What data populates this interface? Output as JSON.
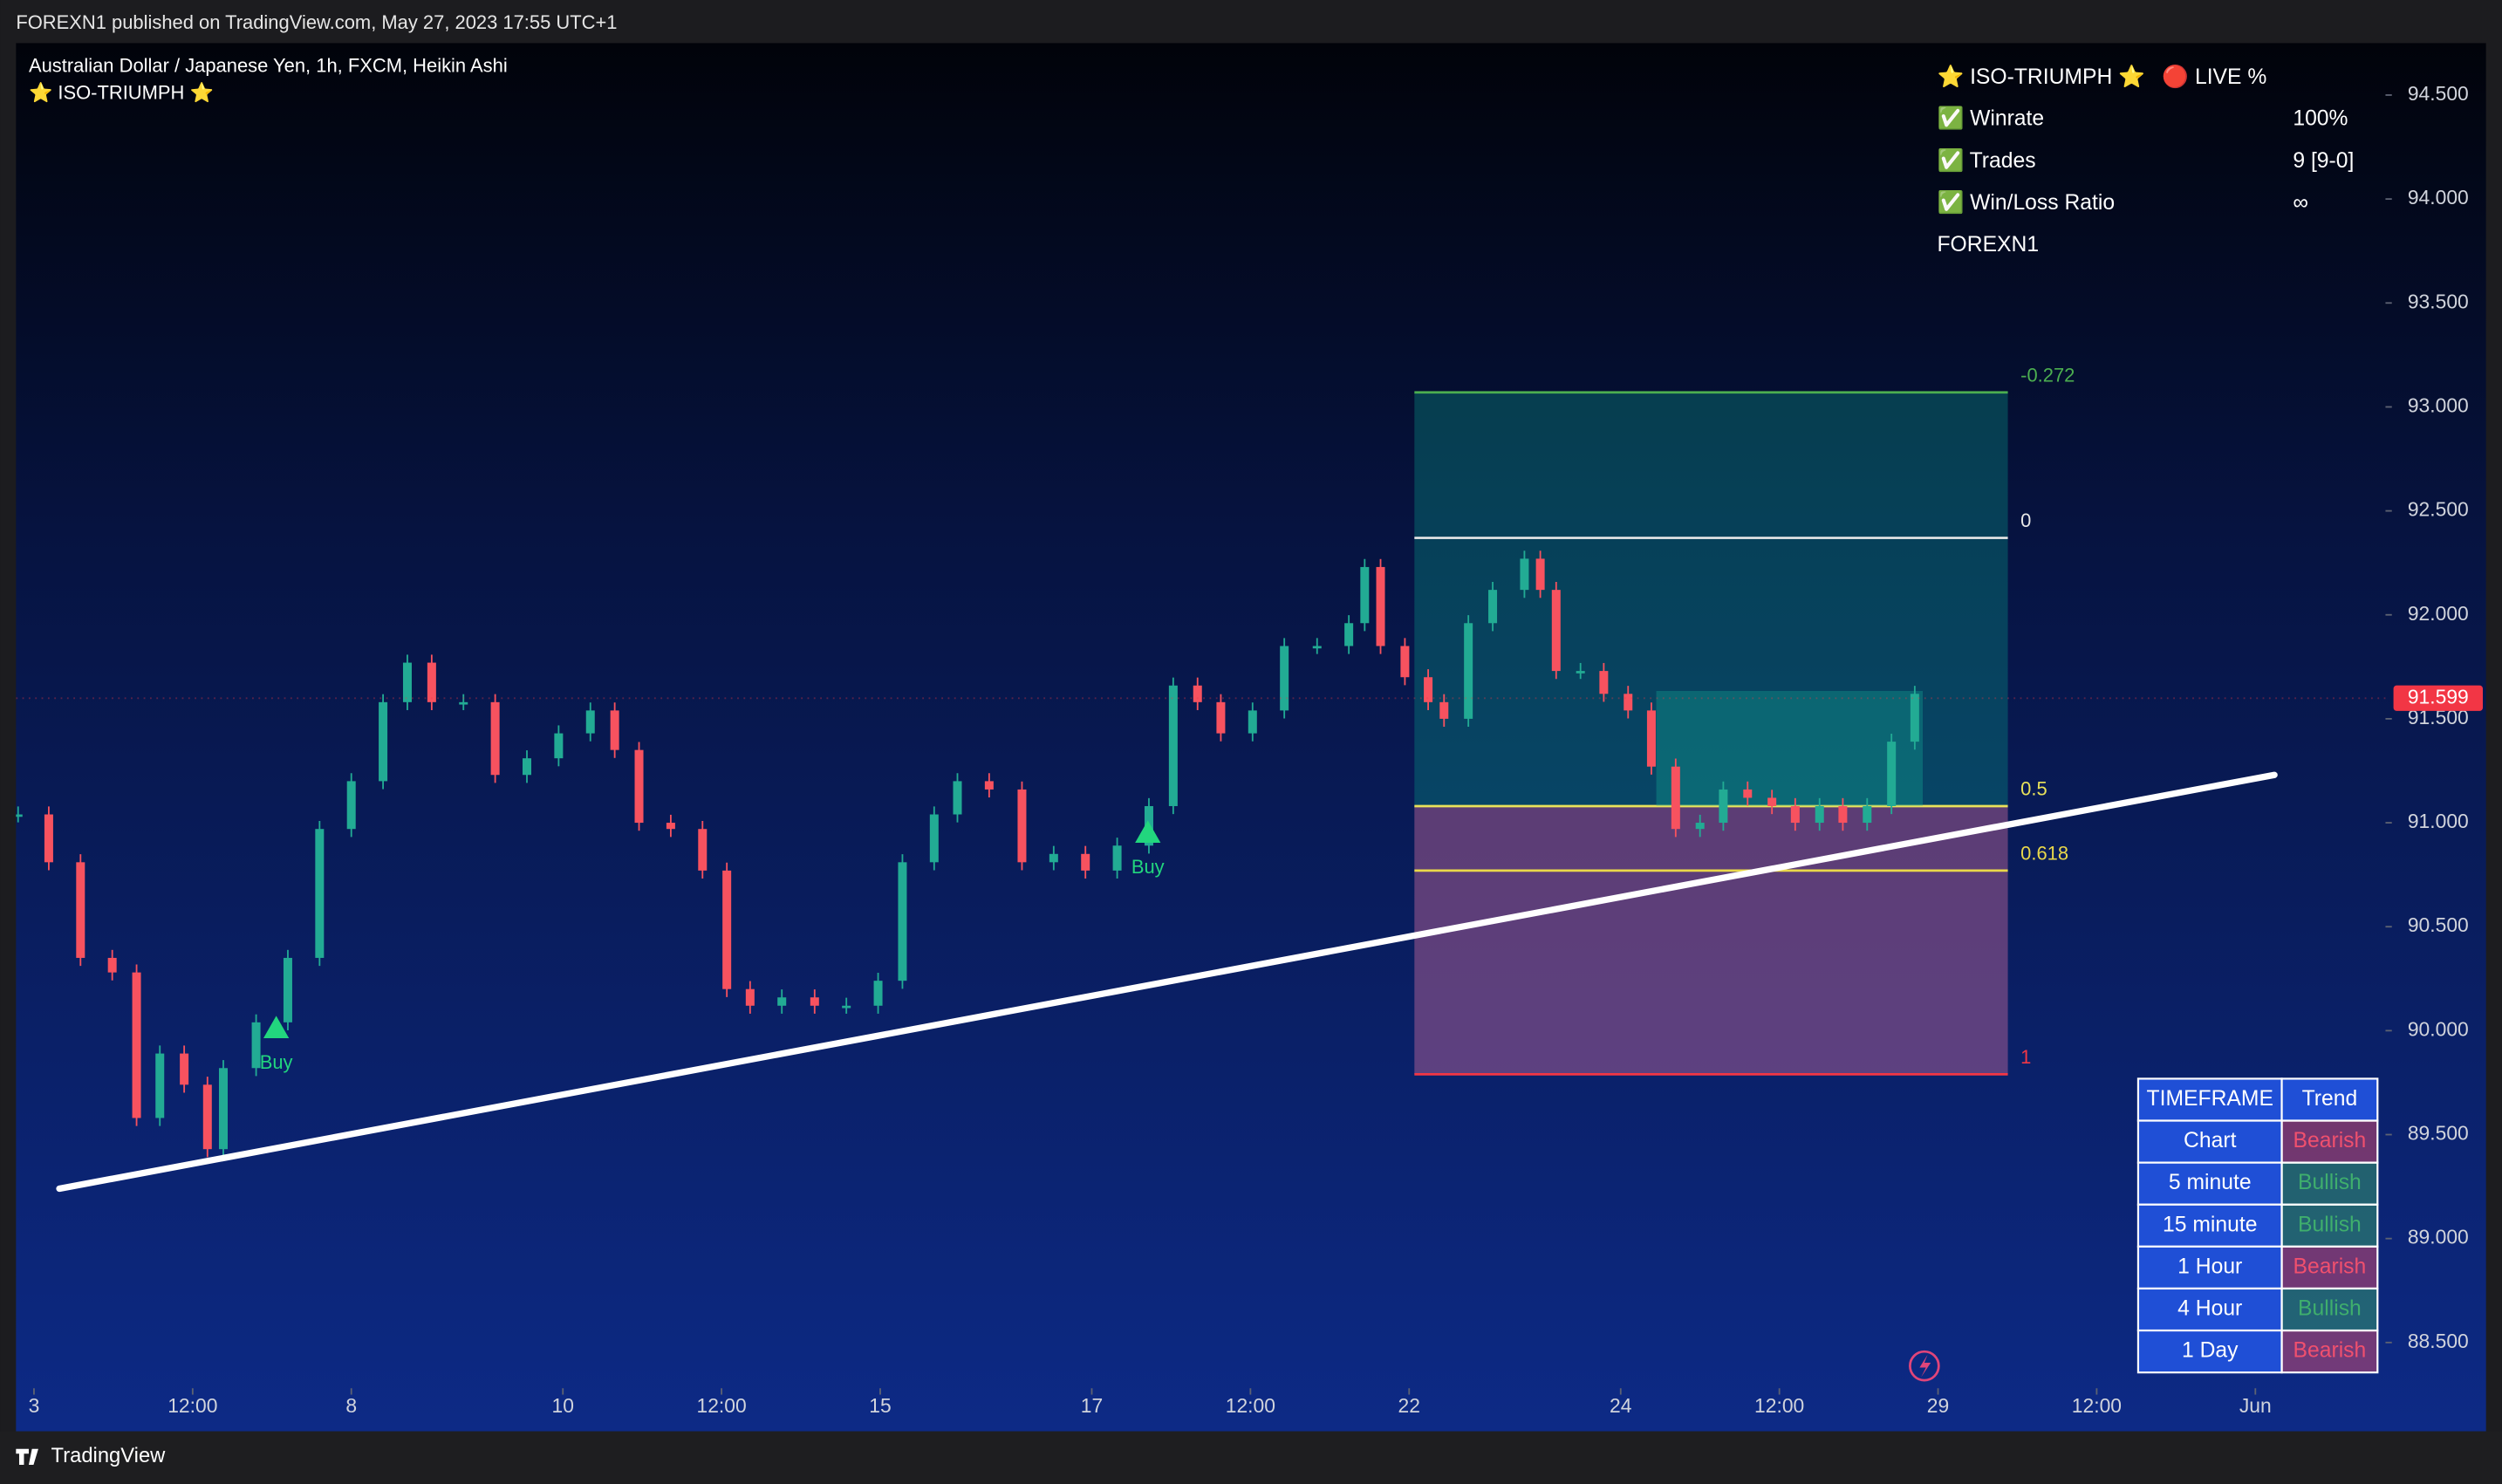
{
  "header": {
    "publisher": "FOREXN1 published on TradingView.com, May 27, 2023 17:55 UTC+1"
  },
  "footer": {
    "brand": "TradingView"
  },
  "legend": {
    "symbol": "Australian Dollar / Japanese Yen, 1h, FXCM, Heikin Ashi",
    "indicator": "⭐ ISO-TRIUMPH ⭐"
  },
  "stats_panel": {
    "title": "⭐ ISO-TRIUMPH ⭐",
    "live": "🔴 LIVE %",
    "rows": [
      [
        "✅ Winrate",
        "100%"
      ],
      [
        "✅ Trades",
        "9 [9-0]"
      ],
      [
        "✅ Win/Loss Ratio",
        "∞"
      ]
    ],
    "author": "FOREXN1"
  },
  "trend_table": {
    "header": [
      "TIMEFRAME",
      "Trend"
    ],
    "rows": [
      {
        "timeframe": "Chart",
        "trend": "Bearish",
        "color": "#f0506e"
      },
      {
        "timeframe": "5 minute",
        "trend": "Bullish",
        "color": "#3fae6d"
      },
      {
        "timeframe": "15 minute",
        "trend": "Bullish",
        "color": "#3fae6d"
      },
      {
        "timeframe": "1 Hour",
        "trend": "Bearish",
        "color": "#f0506e"
      },
      {
        "timeframe": "4 Hour",
        "trend": "Bullish",
        "color": "#3fae6d"
      },
      {
        "timeframe": "1 Day",
        "trend": "Bearish",
        "color": "#f0506e"
      }
    ]
  },
  "chart_data": {
    "type": "candlestick",
    "xlim": [
      -0.17,
      22.23
    ],
    "xticks": [
      {
        "value": 0,
        "label": "3"
      },
      {
        "value": 1.5,
        "label": "12:00"
      },
      {
        "value": 3,
        "label": "8"
      },
      {
        "value": 5,
        "label": "10"
      },
      {
        "value": 6.5,
        "label": "12:00"
      },
      {
        "value": 8,
        "label": "15"
      },
      {
        "value": 10,
        "label": "17"
      },
      {
        "value": 11.5,
        "label": "12:00"
      },
      {
        "value": 13,
        "label": "22"
      },
      {
        "value": 15,
        "label": "24"
      },
      {
        "value": 16.5,
        "label": "12:00"
      },
      {
        "value": 18,
        "label": "29"
      },
      {
        "value": 19.5,
        "label": "12:00"
      },
      {
        "value": 21,
        "label": "Jun"
      }
    ],
    "ylim": [
      88.28,
      94.75
    ],
    "yticks": [
      {
        "value": 88.5,
        "label": "88.500"
      },
      {
        "value": 89,
        "label": "89.000"
      },
      {
        "value": 89.5,
        "label": "89.500"
      },
      {
        "value": 90,
        "label": "90.000"
      },
      {
        "value": 90.5,
        "label": "90.500"
      },
      {
        "value": 91,
        "label": "91.000"
      },
      {
        "value": 91.5,
        "label": "91.500"
      },
      {
        "value": 92,
        "label": "92.000"
      },
      {
        "value": 92.5,
        "label": "92.500"
      },
      {
        "value": 93,
        "label": "93.000"
      },
      {
        "value": 93.5,
        "label": "93.500"
      },
      {
        "value": 94,
        "label": "94.000"
      },
      {
        "value": 94.5,
        "label": "94.500"
      }
    ],
    "grid": false,
    "up_color": "#22ab94",
    "down_color": "#f7525f",
    "x": [
      -0.15,
      0.14,
      0.44,
      0.74,
      0.97,
      1.19,
      1.42,
      1.64,
      1.79,
      2.1,
      2.4,
      2.7,
      3.0,
      3.3,
      3.53,
      3.76,
      4.06,
      4.36,
      4.66,
      4.96,
      5.26,
      5.49,
      5.72,
      6.02,
      6.32,
      6.55,
      6.77,
      7.07,
      7.38,
      7.68,
      7.98,
      8.21,
      8.51,
      8.73,
      9.03,
      9.34,
      9.64,
      9.94,
      10.24,
      10.54,
      10.77,
      11.0,
      11.22,
      11.52,
      11.82,
      12.13,
      12.43,
      12.58,
      12.73,
      12.96,
      13.18,
      13.33,
      13.56,
      13.79,
      14.09,
      14.24,
      14.39,
      14.62,
      14.84,
      15.07,
      15.29,
      15.52,
      15.75,
      15.97,
      16.2,
      16.43,
      16.65,
      16.88,
      17.1,
      17.33,
      17.56,
      17.78
    ],
    "close": [
      91.04,
      90.81,
      90.35,
      90.28,
      89.58,
      89.89,
      89.74,
      89.43,
      89.82,
      90.04,
      90.35,
      90.97,
      91.2,
      91.58,
      91.77,
      91.58,
      91.58,
      91.23,
      91.31,
      91.43,
      91.54,
      91.35,
      91.0,
      90.97,
      90.77,
      90.2,
      90.12,
      90.16,
      90.12,
      90.12,
      90.24,
      90.81,
      91.04,
      91.2,
      91.16,
      90.81,
      90.85,
      90.77,
      90.89,
      91.08,
      91.66,
      91.58,
      91.43,
      91.54,
      91.85,
      91.85,
      91.96,
      92.23,
      91.85,
      91.7,
      91.58,
      91.5,
      91.96,
      92.12,
      92.27,
      92.12,
      91.73,
      91.73,
      91.62,
      91.54,
      91.27,
      90.97,
      91.0,
      91.16,
      91.12,
      91.08,
      91.0,
      91.08,
      91.0,
      91.08,
      91.39,
      91.62
    ],
    "last_price": 91.599,
    "last_price_color": "#f23645",
    "trendline": {
      "x": [
        0.24,
        21.18
      ],
      "y": [
        89.24,
        91.23
      ],
      "color": "#ffffff"
    },
    "signals": [
      {
        "label": "Buy",
        "x": 2.29,
        "price": 90.01,
        "color": "#22d67e"
      },
      {
        "label": "Buy",
        "x": 10.53,
        "price": 90.95,
        "color": "#22d67e"
      }
    ],
    "fib": {
      "left": 13.05,
      "right": 18.66,
      "upper_color": "rgba(8,140,130,0.38)",
      "lower_color": "rgba(210,110,160,0.42)",
      "levels": [
        {
          "ratio": -0.272,
          "price": 93.07,
          "color": "#4caf50"
        },
        {
          "ratio": 0,
          "price": 92.37,
          "color": "#e8e8e8"
        },
        {
          "ratio": 0.5,
          "price": 91.08,
          "color": "#e9e25a"
        },
        {
          "ratio": 0.618,
          "price": 90.77,
          "color": "#e9d84a"
        },
        {
          "ratio": 1,
          "price": 89.79,
          "color": "#f23645"
        }
      ]
    }
  }
}
